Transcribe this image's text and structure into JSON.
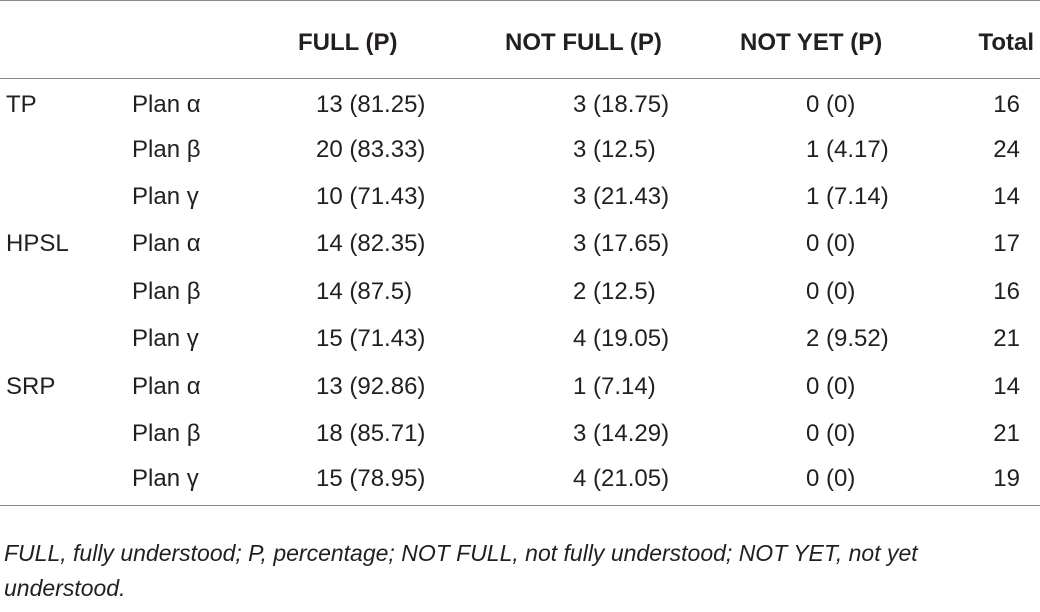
{
  "table": {
    "headers": {
      "group": "",
      "plan": "",
      "full": "FULL (P)",
      "not_full": "NOT FULL (P)",
      "not_yet": "NOT YET (P)",
      "total": "Total"
    },
    "rows": [
      {
        "group": "TP",
        "plan": "Plan α",
        "full": "13 (81.25)",
        "not_full": "3 (18.75)",
        "not_yet": "0 (0)",
        "total": "16"
      },
      {
        "group": "",
        "plan": "Plan β",
        "full": "20 (83.33)",
        "not_full": "3 (12.5)",
        "not_yet": "1 (4.17)",
        "total": "24"
      },
      {
        "group": "",
        "plan": "Plan γ",
        "full": "10 (71.43)",
        "not_full": "3 (21.43)",
        "not_yet": "1 (7.14)",
        "total": "14"
      },
      {
        "group": "HPSL",
        "plan": "Plan α",
        "full": "14 (82.35)",
        "not_full": "3 (17.65)",
        "not_yet": "0 (0)",
        "total": "17"
      },
      {
        "group": "",
        "plan": "Plan β",
        "full": "14 (87.5)",
        "not_full": "2 (12.5)",
        "not_yet": "0 (0)",
        "total": "16"
      },
      {
        "group": "",
        "plan": "Plan γ",
        "full": "15 (71.43)",
        "not_full": "4 (19.05)",
        "not_yet": "2 (9.52)",
        "total": "21"
      },
      {
        "group": "SRP",
        "plan": "Plan α",
        "full": "13 (92.86)",
        "not_full": "1 (7.14)",
        "not_yet": "0 (0)",
        "total": "14"
      },
      {
        "group": "",
        "plan": "Plan β",
        "full": "18 (85.71)",
        "not_full": "3 (14.29)",
        "not_yet": "0 (0)",
        "total": "21"
      },
      {
        "group": "",
        "plan": "Plan γ",
        "full": "15 (78.95)",
        "not_full": "4 (21.05)",
        "not_yet": "0 (0)",
        "total": "19"
      }
    ]
  },
  "footnote": "FULL, fully understood; P, percentage; NOT FULL, not fully understood; NOT YET, not yet understood."
}
